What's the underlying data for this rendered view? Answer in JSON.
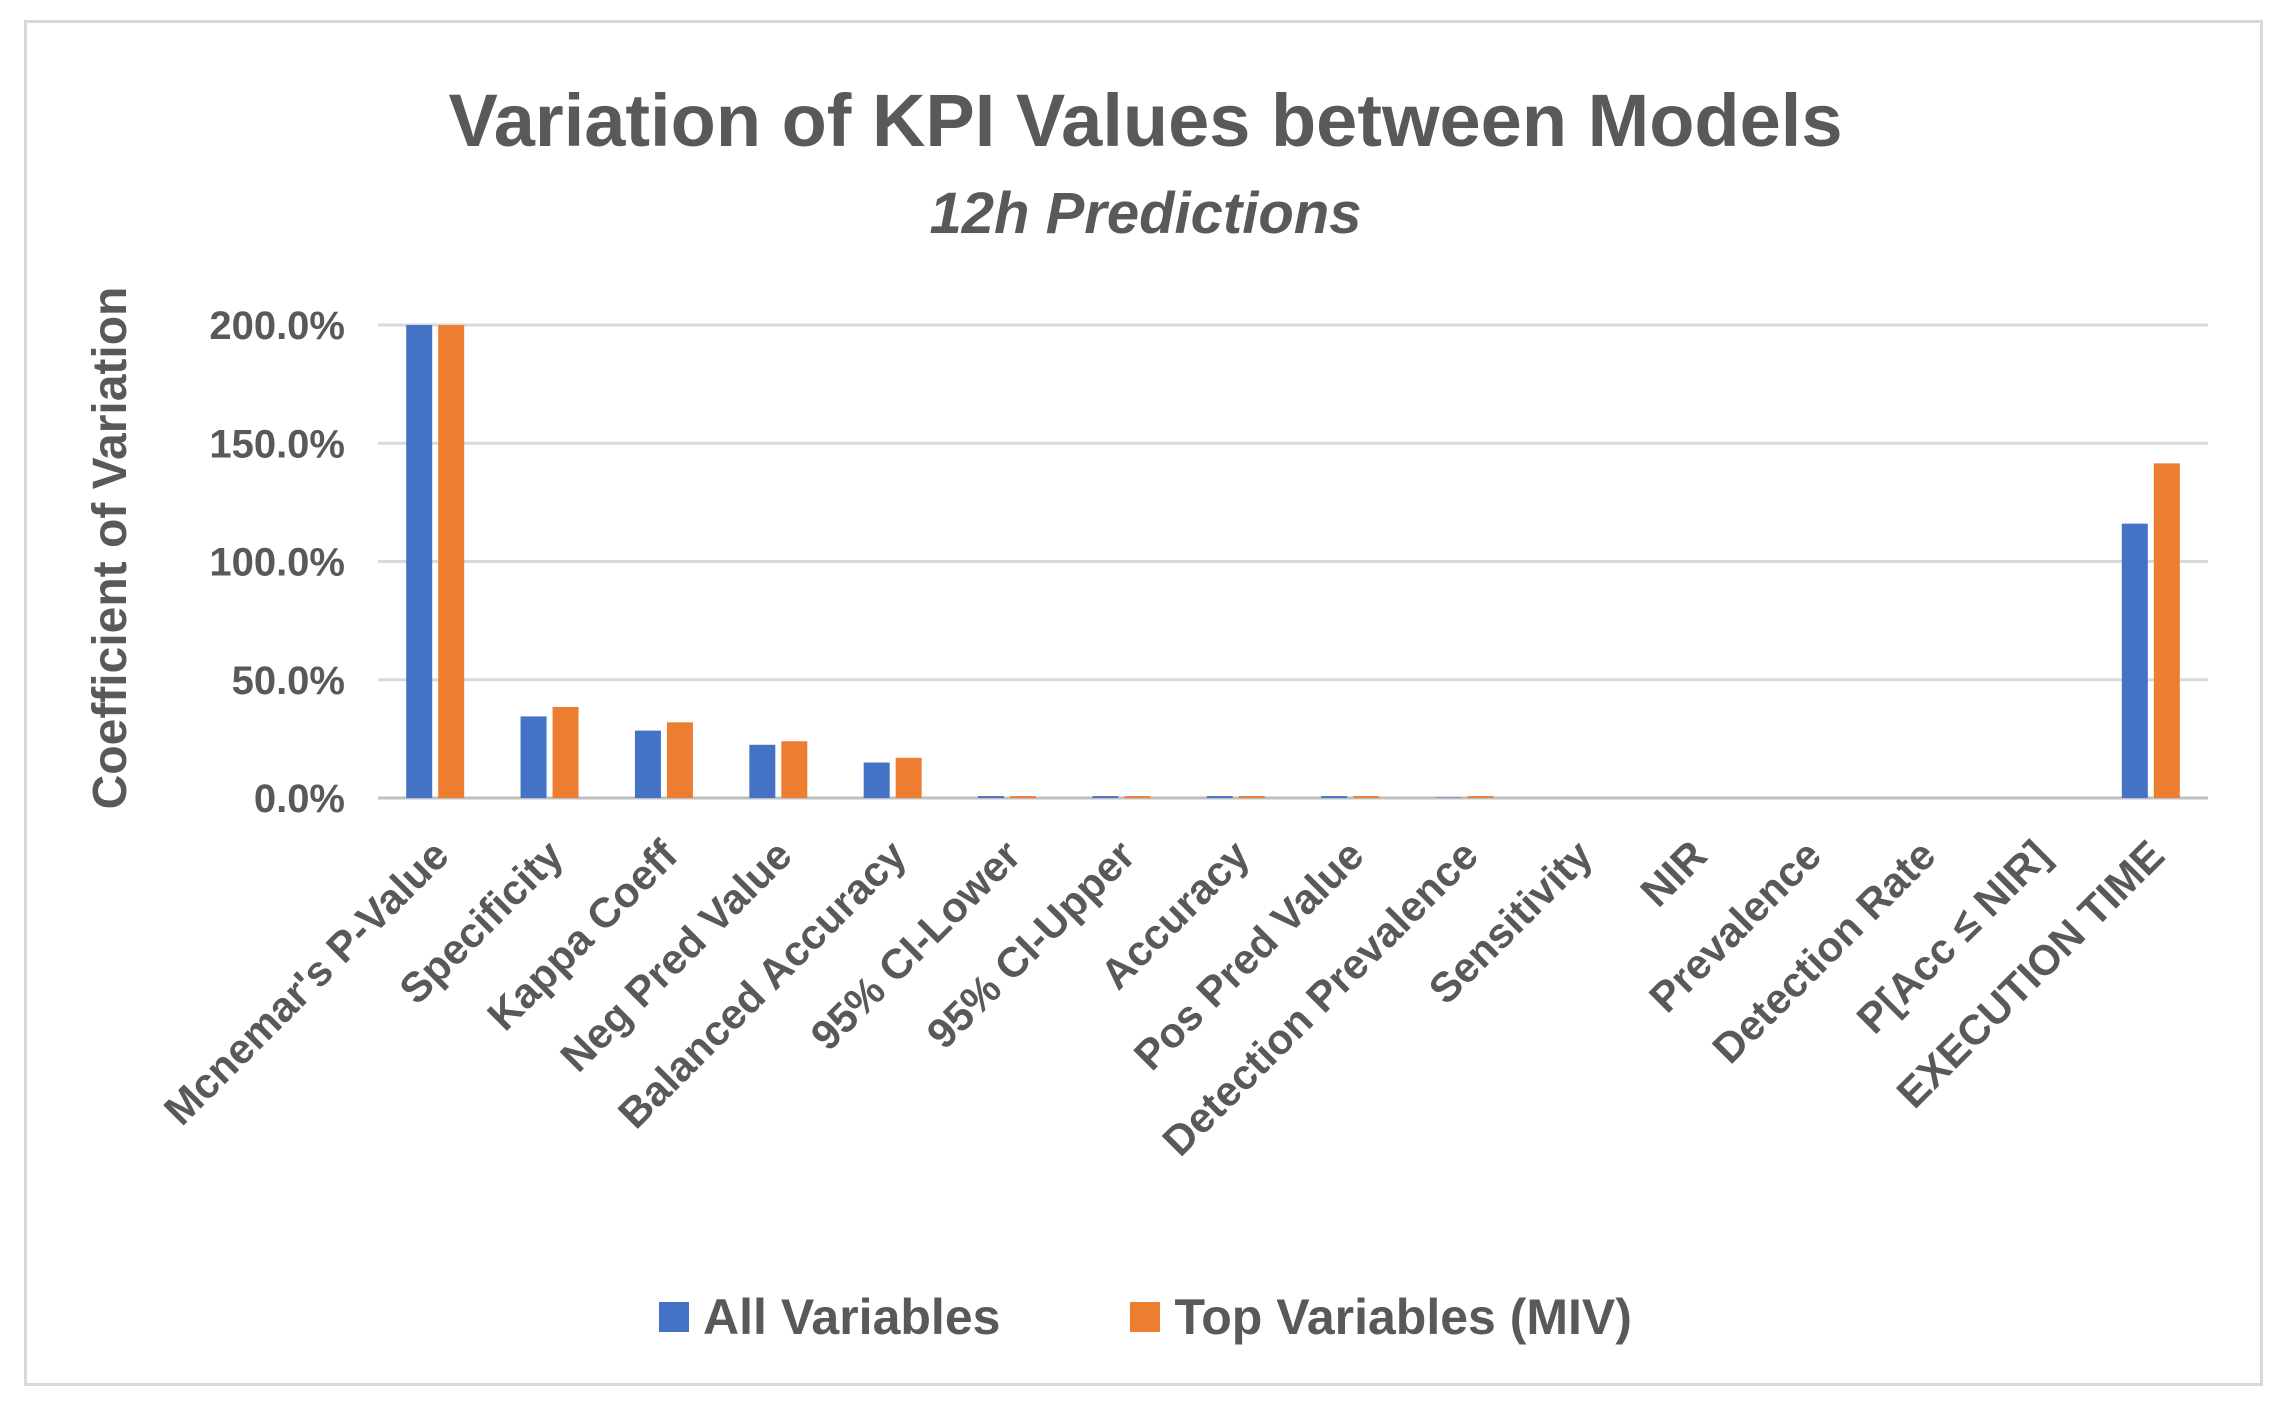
{
  "chart_data": {
    "type": "bar",
    "title": "Variation of KPI Values between Models",
    "subtitle": "12h Predictions",
    "xlabel": "",
    "ylabel": "Coefficient of Variation",
    "ylim": [
      0,
      200
    ],
    "yticks": [
      "0.0%",
      "50.0%",
      "100.0%",
      "150.0%",
      "200.0%"
    ],
    "ytick_values": [
      0,
      50,
      100,
      150,
      200
    ],
    "grid": true,
    "legend_position": "bottom",
    "categories": [
      "Mcnemar's P-Value",
      "Specificity",
      "Kappa Coeff",
      "Neg Pred Value",
      "Balanced Accuracy",
      "95% CI-Lower",
      "95% CI-Upper",
      "Accuracy",
      "Pos Pred Value",
      "Detection Prevalence",
      "Sensitivity",
      "NIR",
      "Prevalence",
      "Detection Rate",
      "P[Acc ≤ NIR]",
      "EXECUTION TIME"
    ],
    "series": [
      {
        "name": "All Variables",
        "color": "#4472c4",
        "values": [
          200,
          34.5,
          28.5,
          22.5,
          15.0,
          0.8,
          0.8,
          0.8,
          0.8,
          0.2,
          0,
          0,
          0,
          0,
          0,
          116.0
        ]
      },
      {
        "name": "Top Variables (MIV)",
        "color": "#ed7d31",
        "values": [
          200,
          38.5,
          32.0,
          24.0,
          17.0,
          0.8,
          0.8,
          0.8,
          0.8,
          0.8,
          0,
          0,
          0,
          0,
          0,
          141.5
        ]
      }
    ]
  }
}
